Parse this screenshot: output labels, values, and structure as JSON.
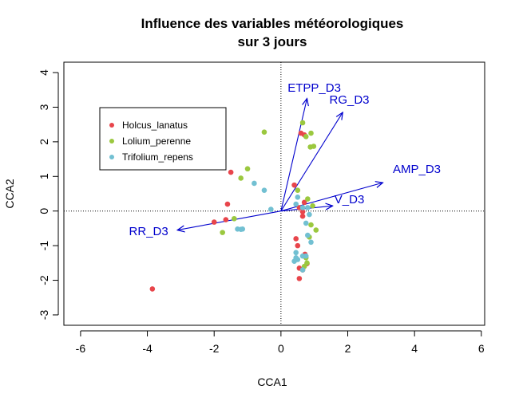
{
  "chart_data": {
    "type": "scatter",
    "title_lines": [
      "Influence des variables météorologiques",
      "sur 3 jours"
    ],
    "xlabel": "CCA1",
    "ylabel": "CCA2",
    "xlim": [
      -6.5,
      6.1
    ],
    "ylim": [
      -3.3,
      4.3
    ],
    "xticks": [
      -6,
      -4,
      -2,
      0,
      2,
      4,
      6
    ],
    "yticks": [
      -3,
      -2,
      -1,
      0,
      1,
      2,
      3,
      4
    ],
    "xtick_labels": [
      "-6",
      "-4",
      "-2",
      "0",
      "2",
      "4",
      "6"
    ],
    "ytick_labels": [
      "-3",
      "-2",
      "-1",
      "0",
      "1",
      "2",
      "3",
      "4"
    ],
    "reference_lines": {
      "x": 0,
      "y": 0,
      "style": "dotted"
    },
    "legend_position": "top-left",
    "arrow_color": "#0000CD",
    "arrows": [
      {
        "label": "ETPP_D3",
        "x": 0.78,
        "y": 3.25,
        "label_x": 0.2,
        "label_y": 3.45
      },
      {
        "label": "RG_D3",
        "x": 1.85,
        "y": 2.85,
        "label_x": 1.45,
        "label_y": 3.1
      },
      {
        "label": "AMP_D3",
        "x": 3.05,
        "y": 0.82,
        "label_x": 3.35,
        "label_y": 1.1
      },
      {
        "label": "V_D3",
        "x": 1.55,
        "y": 0.15,
        "label_x": 1.6,
        "label_y": 0.22
      },
      {
        "label": "RR_D3",
        "x": -3.1,
        "y": -0.55,
        "label_x": -4.55,
        "label_y": -0.7
      }
    ],
    "series": [
      {
        "name": "Holcus_lanatus",
        "color": "#E8454B",
        "points": [
          [
            -3.85,
            -2.25
          ],
          [
            -2.0,
            -0.32
          ],
          [
            -1.65,
            -0.25
          ],
          [
            -1.6,
            0.2
          ],
          [
            -1.5,
            1.12
          ],
          [
            0.4,
            0.75
          ],
          [
            0.6,
            2.25
          ],
          [
            0.7,
            2.2
          ],
          [
            0.7,
            0.25
          ],
          [
            0.55,
            0.1
          ],
          [
            0.65,
            -0.02
          ],
          [
            0.65,
            -0.15
          ],
          [
            0.45,
            -0.8
          ],
          [
            0.5,
            -1.0
          ],
          [
            0.72,
            -1.25
          ],
          [
            0.78,
            -1.52
          ],
          [
            0.55,
            -1.65
          ],
          [
            0.65,
            -1.7
          ],
          [
            0.55,
            -1.95
          ]
        ]
      },
      {
        "name": "Lolium_perenne",
        "color": "#9BC83F",
        "points": [
          [
            -1.75,
            -0.62
          ],
          [
            -1.4,
            -0.22
          ],
          [
            -1.0,
            1.22
          ],
          [
            -1.2,
            0.95
          ],
          [
            -0.5,
            2.28
          ],
          [
            0.65,
            2.55
          ],
          [
            0.75,
            2.15
          ],
          [
            0.9,
            2.25
          ],
          [
            0.88,
            1.85
          ],
          [
            0.98,
            1.87
          ],
          [
            0.5,
            0.6
          ],
          [
            0.8,
            0.35
          ],
          [
            0.95,
            0.15
          ],
          [
            0.9,
            -0.4
          ],
          [
            1.05,
            -0.55
          ],
          [
            0.85,
            -0.75
          ],
          [
            0.75,
            -1.35
          ],
          [
            0.78,
            -1.5
          ],
          [
            0.7,
            -1.6
          ]
        ]
      },
      {
        "name": "Trifolium_repens",
        "color": "#72C0D2",
        "points": [
          [
            -1.3,
            -0.52
          ],
          [
            -1.2,
            -0.53
          ],
          [
            -1.15,
            -0.52
          ],
          [
            -0.8,
            0.8
          ],
          [
            -0.5,
            0.6
          ],
          [
            -0.3,
            0.05
          ],
          [
            0.45,
            0.2
          ],
          [
            0.5,
            0.4
          ],
          [
            0.65,
            0.1
          ],
          [
            0.8,
            0.1
          ],
          [
            0.85,
            -0.1
          ],
          [
            0.75,
            -0.35
          ],
          [
            0.8,
            -0.7
          ],
          [
            0.9,
            -0.9
          ],
          [
            0.45,
            -1.35
          ],
          [
            0.65,
            -1.3
          ],
          [
            0.5,
            -1.4
          ],
          [
            0.4,
            -1.45
          ],
          [
            0.75,
            -1.3
          ],
          [
            0.65,
            -1.7
          ],
          [
            0.45,
            -1.2
          ]
        ]
      }
    ]
  }
}
